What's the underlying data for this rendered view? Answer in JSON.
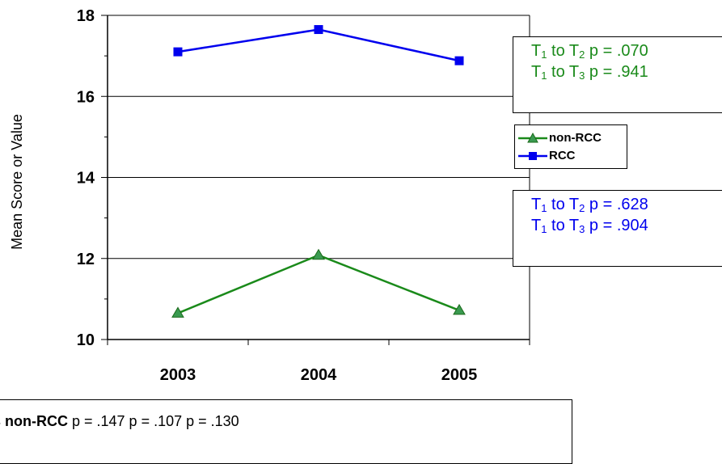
{
  "chart_data": {
    "type": "line",
    "categories": [
      "2003",
      "2004",
      "2005"
    ],
    "series": [
      {
        "name": "non-RCC",
        "values": [
          10.65,
          12.08,
          10.72
        ],
        "color": "#1a8a1a",
        "marker": "triangle"
      },
      {
        "name": "RCC",
        "values": [
          17.1,
          17.65,
          16.88
        ],
        "color": "#0000ee",
        "marker": "square"
      }
    ],
    "title": "",
    "xlabel": "",
    "ylabel": "Mean Score or Value",
    "ylim": [
      10,
      18
    ],
    "yticks": [
      10,
      12,
      14,
      16,
      18
    ],
    "grid": true,
    "legend_position": "right"
  },
  "rcc_stats": {
    "line1_t": "T",
    "line1_sub1": "1",
    "line1_mid": " to T",
    "line1_sub2": "2",
    "line1_rest": " p = .070",
    "line2_t": "T",
    "line2_sub1": "1",
    "line2_mid": " to T",
    "line2_sub2": "3",
    "line2_rest": " p = .941"
  },
  "nonrcc_stats": {
    "line1_t": "T",
    "line1_sub1": "1",
    "line1_mid": " to T",
    "line1_sub2": "2",
    "line1_rest": " p = .628",
    "line2_t": "T",
    "line2_sub1": "1",
    "line2_mid": " to T",
    "line2_sub2": "3",
    "line2_rest": " p = .904"
  },
  "bottom": {
    "bold_text": "s non-RCC",
    "rest_text": " p = .147 p = .107 p = .130"
  }
}
